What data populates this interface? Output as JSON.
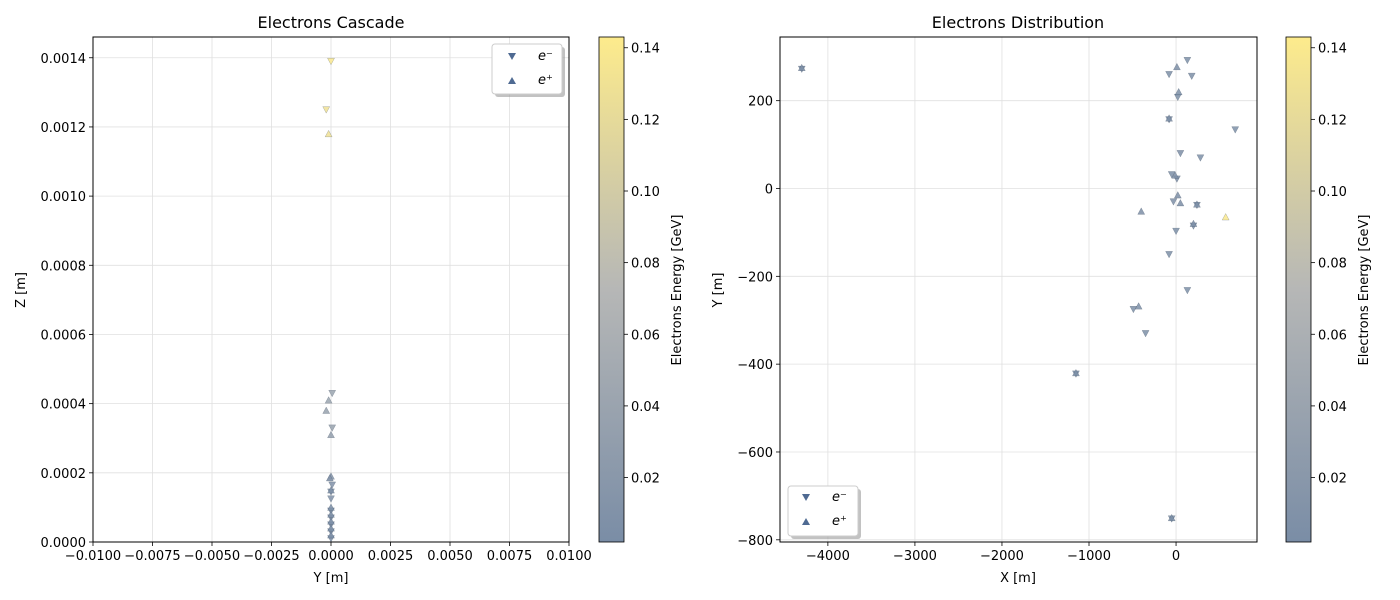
{
  "chart_data": [
    {
      "type": "scatter",
      "title": "Electrons Cascade",
      "xlabel": "Y [m]",
      "ylabel": "Z [m]",
      "xlim": [
        -0.01,
        0.01
      ],
      "ylim": [
        0,
        0.00146
      ],
      "xticks": [
        "−0.0100",
        "−0.0075",
        "−0.0050",
        "−0.0025",
        "0.0000",
        "0.0025",
        "0.0050",
        "0.0075",
        "0.0100"
      ],
      "xtick_values": [
        -0.01,
        -0.0075,
        -0.005,
        -0.0025,
        0,
        0.0025,
        0.005,
        0.0075,
        0.01
      ],
      "yticks": [
        "0.0000",
        "0.0002",
        "0.0004",
        "0.0006",
        "0.0008",
        "0.0010",
        "0.0012",
        "0.0014"
      ],
      "ytick_values": [
        0,
        0.0002,
        0.0004,
        0.0006,
        0.0008,
        0.001,
        0.0012,
        0.0014
      ],
      "grid": true,
      "legend_position": "top-right",
      "series": [
        {
          "name": "e⁻",
          "marker": "triangle-down",
          "points": [
            {
              "x": 0.0,
              "y": 0.00139,
              "e": 0.14
            },
            {
              "x": -0.0002,
              "y": 0.00125,
              "e": 0.13
            },
            {
              "x": 5e-05,
              "y": 0.00043,
              "e": 0.04
            },
            {
              "x": 5e-05,
              "y": 0.00033,
              "e": 0.035
            },
            {
              "x": 5e-05,
              "y": 0.000165,
              "e": 0.01
            },
            {
              "x": 0.0,
              "y": 0.000145,
              "e": 0.008
            },
            {
              "x": 0.0,
              "y": 0.000125,
              "e": 0.01
            },
            {
              "x": 0.0,
              "y": 9e-05,
              "e": 0.005
            },
            {
              "x": 0.0,
              "y": 7e-05,
              "e": 0.004
            },
            {
              "x": 0.0,
              "y": 5e-05,
              "e": 0.003
            },
            {
              "x": 0.0,
              "y": 3e-05,
              "e": 0.003
            },
            {
              "x": 0.0,
              "y": 1e-05,
              "e": 0.002
            }
          ]
        },
        {
          "name": "e⁺",
          "marker": "triangle-up",
          "points": [
            {
              "x": -0.0001,
              "y": 0.00118,
              "e": 0.13
            },
            {
              "x": -0.0001,
              "y": 0.00041,
              "e": 0.04
            },
            {
              "x": -0.0002,
              "y": 0.00038,
              "e": 0.035
            },
            {
              "x": 0.0,
              "y": 0.00031,
              "e": 0.03
            },
            {
              "x": 0.0,
              "y": 0.00019,
              "e": 0.012
            },
            {
              "x": -5e-05,
              "y": 0.000185,
              "e": 0.01
            },
            {
              "x": 0.0,
              "y": 0.00015,
              "e": 0.006
            },
            {
              "x": 0.0,
              "y": 0.0001,
              "e": 0.005
            },
            {
              "x": 0.0,
              "y": 8e-05,
              "e": 0.004
            },
            {
              "x": 0.0,
              "y": 6e-05,
              "e": 0.003
            },
            {
              "x": 0.0,
              "y": 4e-05,
              "e": 0.003
            },
            {
              "x": 0.0,
              "y": 2e-05,
              "e": 0.002
            }
          ]
        }
      ],
      "colorbar": {
        "label": "Electrons Energy [GeV]",
        "range": [
          0.002,
          0.143
        ],
        "ticks": [
          "0.02",
          "0.04",
          "0.06",
          "0.08",
          "0.10",
          "0.12",
          "0.14"
        ],
        "tick_values": [
          0.02,
          0.04,
          0.06,
          0.08,
          0.1,
          0.12,
          0.14
        ],
        "colormap": [
          "#7a8da6",
          "#b6b7b6",
          "#fdeb8c"
        ]
      }
    },
    {
      "type": "scatter",
      "title": "Electrons Distribution",
      "xlabel": "X [m]",
      "ylabel": "Y [m]",
      "xlim": [
        -4550,
        930
      ],
      "ylim": [
        -805,
        345
      ],
      "xticks": [
        "−4000",
        "−3000",
        "−2000",
        "−1000",
        "0"
      ],
      "xtick_values": [
        -4000,
        -3000,
        -2000,
        -1000,
        0
      ],
      "yticks": [
        "−800",
        "−600",
        "−400",
        "−200",
        "0",
        "200"
      ],
      "ytick_values": [
        -800,
        -600,
        -400,
        -200,
        0,
        200
      ],
      "grid": true,
      "legend_position": "bottom-left",
      "series": [
        {
          "name": "e⁻",
          "marker": "triangle-down",
          "points": [
            {
              "x": -4300,
              "y": 272,
              "e": 0.004
            },
            {
              "x": 130,
              "y": 292,
              "e": 0.005
            },
            {
              "x": -80,
              "y": 260,
              "e": 0.005
            },
            {
              "x": 180,
              "y": 256,
              "e": 0.004
            },
            {
              "x": 20,
              "y": 208,
              "e": 0.005
            },
            {
              "x": -80,
              "y": 157,
              "e": 0.004
            },
            {
              "x": 680,
              "y": 134,
              "e": 0.006
            },
            {
              "x": 50,
              "y": 80,
              "e": 0.004
            },
            {
              "x": 280,
              "y": 70,
              "e": 0.006
            },
            {
              "x": -50,
              "y": 32,
              "e": 0.005
            },
            {
              "x": 10,
              "y": 22,
              "e": 0.004
            },
            {
              "x": -30,
              "y": -30,
              "e": 0.004
            },
            {
              "x": 240,
              "y": -38,
              "e": 0.003
            },
            {
              "x": 200,
              "y": -85,
              "e": 0.004
            },
            {
              "x": 0,
              "y": -97,
              "e": 0.005
            },
            {
              "x": -80,
              "y": -150,
              "e": 0.005
            },
            {
              "x": 130,
              "y": -232,
              "e": 0.005
            },
            {
              "x": -490,
              "y": -275,
              "e": 0.005
            },
            {
              "x": -350,
              "y": -330,
              "e": 0.005
            },
            {
              "x": -1150,
              "y": -422,
              "e": 0.003
            },
            {
              "x": -50,
              "y": -752,
              "e": 0.003
            }
          ]
        },
        {
          "name": "e⁺",
          "marker": "triangle-up",
          "points": [
            {
              "x": -4300,
              "y": 275,
              "e": 0.004
            },
            {
              "x": 10,
              "y": 277,
              "e": 0.004
            },
            {
              "x": 30,
              "y": 220,
              "e": 0.005
            },
            {
              "x": -80,
              "y": 160,
              "e": 0.004
            },
            {
              "x": -10,
              "y": 30,
              "e": 0.004
            },
            {
              "x": 20,
              "y": -15,
              "e": 0.004
            },
            {
              "x": 50,
              "y": -33,
              "e": 0.004
            },
            {
              "x": 240,
              "y": -36,
              "e": 0.003
            },
            {
              "x": -400,
              "y": -52,
              "e": 0.004
            },
            {
              "x": 570,
              "y": -65,
              "e": 0.14
            },
            {
              "x": 200,
              "y": -80,
              "e": 0.004
            },
            {
              "x": -430,
              "y": -268,
              "e": 0.005
            },
            {
              "x": -1150,
              "y": -420,
              "e": 0.003
            },
            {
              "x": -50,
              "y": -750,
              "e": 0.003
            }
          ]
        }
      ],
      "colorbar": {
        "label": "Electrons Energy [GeV]",
        "range": [
          0.002,
          0.143
        ],
        "ticks": [
          "0.02",
          "0.04",
          "0.06",
          "0.08",
          "0.10",
          "0.12",
          "0.14"
        ],
        "tick_values": [
          0.02,
          0.04,
          0.06,
          0.08,
          0.1,
          0.12,
          0.14
        ],
        "colormap": [
          "#7a8da6",
          "#b6b7b6",
          "#fdeb8c"
        ]
      }
    }
  ]
}
